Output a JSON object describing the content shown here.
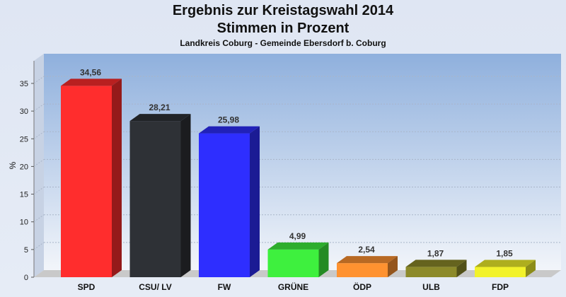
{
  "chart_data": {
    "type": "bar",
    "title": "Ergebnis zur Kreistagswahl 2014",
    "subtitle": "Stimmen in Prozent",
    "subsubtitle": "Landkreis Coburg - Gemeinde Ebersdorf b. Coburg",
    "ylabel": "%",
    "ylim": [
      0,
      35
    ],
    "yticks": [
      "0",
      "5",
      "10",
      "15",
      "20",
      "25",
      "30",
      "35"
    ],
    "categories": [
      "SPD",
      "CSU/ LV",
      "FW",
      "GRÜNE",
      "ÖDP",
      "ULB",
      "FDP"
    ],
    "values": [
      34.56,
      28.21,
      25.98,
      4.99,
      2.54,
      1.87,
      1.85
    ],
    "value_labels": [
      "34,56",
      "28,21",
      "25,98",
      "4,99",
      "2,54",
      "1,87",
      "1,85"
    ],
    "colors": [
      "#ff2d2d",
      "#2e3136",
      "#2e2eff",
      "#3ef03e",
      "#ff9230",
      "#8c8a2a",
      "#f2f22a"
    ],
    "grid": true
  }
}
